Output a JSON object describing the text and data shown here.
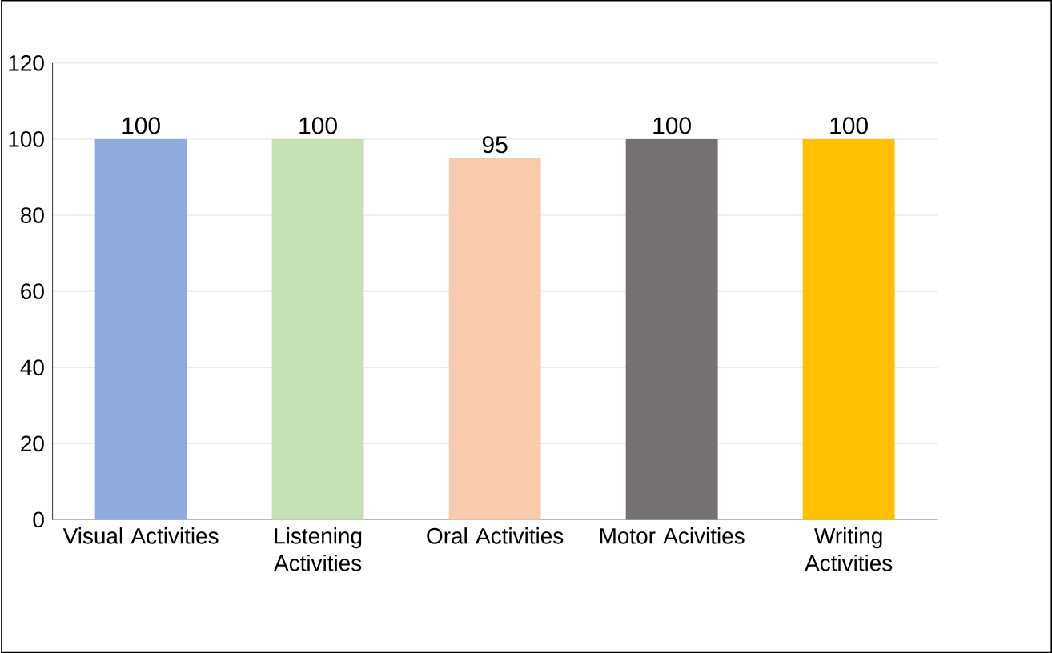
{
  "chart_data": {
    "type": "bar",
    "categories": [
      "Visual Activities",
      "Listening Activities",
      "Oral Activities",
      "Motor Acivities",
      "Writing Activities"
    ],
    "values": [
      100,
      100,
      95,
      100,
      100
    ],
    "colors": [
      "#8faadc",
      "#c5e0b4",
      "#f8cbad",
      "#767171",
      "#ffc000"
    ],
    "ylim": [
      0,
      120
    ],
    "yticks": [
      0,
      20,
      40,
      60,
      80,
      100,
      120
    ],
    "grid": "y",
    "data_labels": true
  }
}
